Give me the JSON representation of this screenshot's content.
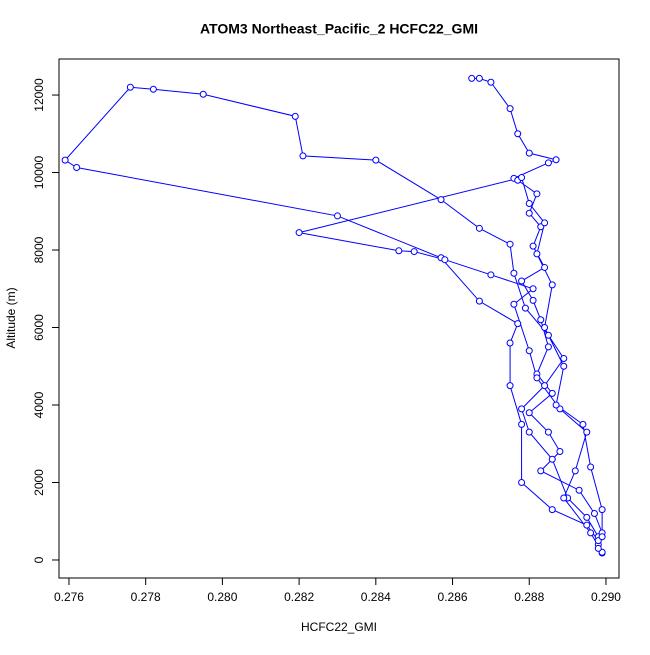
{
  "chart_data": {
    "type": "line",
    "title": "ATOM3 Northeast_Pacific_2 HCFC22_GMI",
    "xlabel": "HCFC22_GMI",
    "ylabel": "Altitude (m)",
    "color": "#0000ff",
    "markers": "open-circle",
    "xlim": [
      0.27574,
      0.29034
    ],
    "ylim": [
      -465,
      12930
    ],
    "xticks": [
      0.276,
      0.278,
      {
        "value": 0.28,
        "label": "0.280"
      },
      0.282,
      0.284,
      0.286,
      0.288,
      {
        "value": 0.29,
        "label": "0.290"
      }
    ],
    "yticks": [
      0,
      2000,
      4000,
      6000,
      8000,
      10000,
      12000
    ],
    "series": [
      {
        "name": "HCFC22_GMI",
        "x": [
          0.2865,
          0.2867,
          0.287,
          0.2875,
          0.2877,
          0.288,
          0.2887,
          0.2885,
          0.2876,
          0.2877,
          0.2882,
          0.288,
          0.2883,
          0.2881,
          0.2884,
          0.2878,
          0.2881,
          0.2883,
          0.2885,
          0.2882,
          0.2886,
          0.288,
          0.2885,
          0.2888,
          0.2883,
          0.2893,
          0.2897,
          0.2899,
          0.2898,
          0.2899,
          0.2898,
          0.2895,
          0.289,
          0.2886,
          0.288,
          0.2878,
          0.2884,
          0.2889,
          0.2885,
          0.2879,
          0.2876,
          0.2875,
          0.2867,
          0.2857,
          0.284,
          0.2821,
          0.2819,
          0.2795,
          0.2782,
          0.2776,
          0.2759,
          0.2762,
          0.283,
          0.2857,
          0.2867,
          0.2877,
          0.2875,
          0.2875,
          0.2878,
          0.2878,
          0.2886,
          0.2895,
          0.2898,
          0.2899,
          0.2896,
          0.2889,
          0.2892,
          0.2895,
          0.2888,
          0.2882,
          0.288,
          0.2876,
          0.2881,
          0.287,
          0.2858,
          0.285,
          0.2846,
          0.282,
          0.2878,
          0.288,
          0.2884,
          0.2882,
          0.2886,
          0.2884,
          0.2889,
          0.2887,
          0.2894,
          0.2896,
          0.2899,
          0.2899,
          0.2898
        ],
        "values": [
          12430,
          12430,
          12330,
          11650,
          11000,
          10500,
          10330,
          10250,
          9850,
          9800,
          9450,
          8950,
          8600,
          8100,
          7550,
          7200,
          6700,
          6200,
          5500,
          4800,
          4300,
          3800,
          3300,
          2800,
          2300,
          1800,
          1200,
          700,
          400,
          180,
          600,
          1100,
          1600,
          2600,
          3300,
          3900,
          4500,
          5200,
          5800,
          6500,
          7400,
          8150,
          8560,
          9300,
          10320,
          10430,
          11450,
          12020,
          12150,
          12200,
          10320,
          10130,
          8880,
          7800,
          6680,
          6100,
          5600,
          4500,
          3500,
          2000,
          1300,
          900,
          500,
          200,
          700,
          1600,
          2300,
          3300,
          3900,
          4700,
          5400,
          6600,
          7000,
          7360,
          7750,
          7960,
          7980,
          8450,
          9870,
          9200,
          8700,
          7900,
          7100,
          6000,
          5000,
          4000,
          3500,
          2400,
          1300,
          600,
          300
        ]
      }
    ]
  }
}
